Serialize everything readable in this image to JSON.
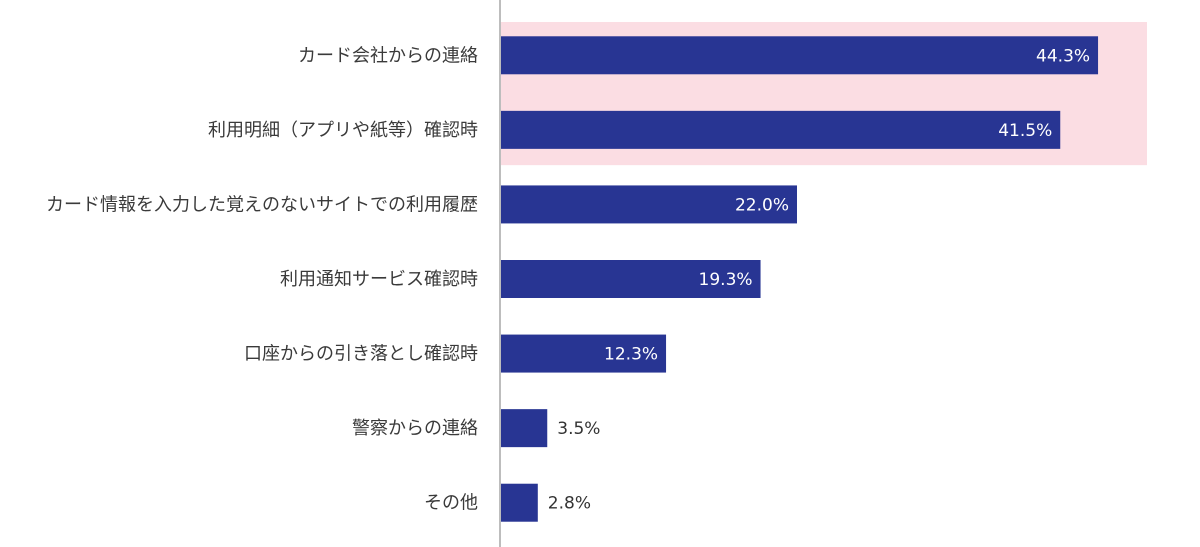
{
  "colors": {
    "bar": "#283593",
    "highlight": "#fbdde3",
    "axis": "#bdbdbd",
    "label_inside": "#ffffff",
    "label_outside": "#333333",
    "category_text": "#3a3a3a"
  },
  "chart_data": {
    "type": "bar",
    "orientation": "horizontal",
    "categories": [
      "カード会社からの連絡",
      "利用明細（アプリや紙等）確認時",
      "カード情報を入力した覚えのないサイトでの利用履歴",
      "利用通知サービス確認時",
      "口座からの引き落とし確認時",
      "警察からの連絡",
      "その他"
    ],
    "values": [
      44.3,
      41.5,
      22.0,
      19.3,
      12.3,
      3.5,
      2.8
    ],
    "value_labels": [
      "44.3%",
      "41.5%",
      "22.0%",
      "19.3%",
      "12.3%",
      "3.5%",
      "2.8%"
    ],
    "highlighted_categories": [
      0,
      1
    ],
    "xlim": [
      0,
      50
    ],
    "grid": false,
    "legend": "none"
  }
}
